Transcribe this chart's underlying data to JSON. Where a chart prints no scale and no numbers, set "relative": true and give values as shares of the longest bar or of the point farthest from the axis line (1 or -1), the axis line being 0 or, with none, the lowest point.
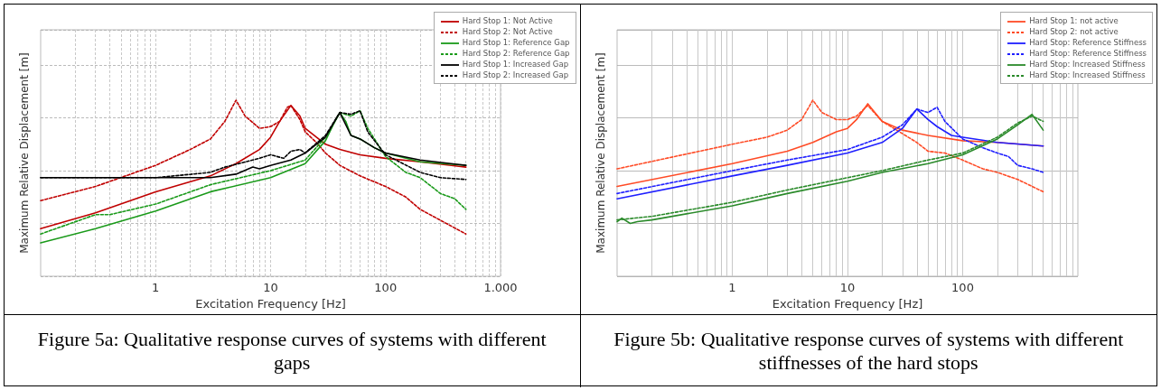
{
  "chart_data": [
    {
      "type": "line",
      "xlabel": "Excitation Frequency [Hz]",
      "ylabel": "Maximum Relative Displacement [m]",
      "relative": true,
      "log": "x",
      "grid": true,
      "legend": "top right",
      "marker": "none",
      "xlim": [
        0.1,
        1000
      ],
      "xticks": [
        {
          "value": 0.2,
          "label": null
        },
        {
          "value": 0.3,
          "label": null
        },
        {
          "value": 0.4,
          "label": null
        },
        {
          "value": 0.5,
          "label": null
        },
        {
          "value": 0.6,
          "label": null
        },
        {
          "value": 0.7,
          "label": null
        },
        {
          "value": 0.8,
          "label": null
        },
        {
          "value": 0.9,
          "label": null
        },
        1,
        {
          "value": 2,
          "label": null
        },
        {
          "value": 3,
          "label": null
        },
        {
          "value": 4,
          "label": null
        },
        {
          "value": 5,
          "label": null
        },
        {
          "value": 6,
          "label": null
        },
        {
          "value": 7,
          "label": null
        },
        {
          "value": 8,
          "label": null
        },
        {
          "value": 9,
          "label": null
        },
        10,
        {
          "value": 20,
          "label": null
        },
        {
          "value": 30,
          "label": null
        },
        {
          "value": 40,
          "label": null
        },
        {
          "value": 50,
          "label": null
        },
        {
          "value": 60,
          "label": null
        },
        {
          "value": 70,
          "label": null
        },
        {
          "value": 80,
          "label": null
        },
        {
          "value": 90,
          "label": null
        },
        100,
        {
          "value": 200,
          "label": null
        },
        {
          "value": 300,
          "label": null
        },
        {
          "value": 400,
          "label": null
        },
        {
          "value": 500,
          "label": null
        },
        {
          "value": 600,
          "label": null
        },
        {
          "value": 700,
          "label": null
        },
        {
          "value": 800,
          "label": null
        },
        {
          "value": 900,
          "label": null
        },
        {
          "value": 1000,
          "label": "1.000"
        }
      ],
      "annotations": [
        "Figure 5a: Qualitative response curves of systems with different gaps"
      ],
      "series": [
        {
          "name": "Hard Stop 1: Not Active",
          "color": "#c00000",
          "line_style": "solid",
          "x": [
            0.1,
            0.3,
            1,
            3,
            5,
            8,
            10,
            12,
            15,
            18,
            20,
            25,
            30,
            40,
            60,
            100,
            200,
            500
          ],
          "values": [
            0.27,
            0.36,
            0.48,
            0.57,
            0.64,
            0.72,
            0.79,
            0.88,
            0.97,
            0.91,
            0.84,
            0.79,
            0.75,
            0.72,
            0.69,
            0.67,
            0.65,
            0.62
          ]
        },
        {
          "name": "Hard Stop 2: Not Active",
          "color": "#c00000",
          "line_style": "dashed",
          "x": [
            0.1,
            0.3,
            1,
            2,
            3,
            4,
            5,
            6,
            8,
            10,
            12,
            14,
            15,
            18,
            20,
            25,
            30,
            40,
            60,
            100,
            150,
            200,
            500
          ],
          "values": [
            0.43,
            0.51,
            0.63,
            0.72,
            0.78,
            0.88,
            1.0,
            0.91,
            0.84,
            0.85,
            0.88,
            0.96,
            0.97,
            0.89,
            0.82,
            0.76,
            0.7,
            0.63,
            0.57,
            0.51,
            0.45,
            0.38,
            0.24
          ]
        },
        {
          "name": "Hard Stop 1: Reference Gap",
          "color": "#1a9a1a",
          "line_style": "solid",
          "x": [
            0.1,
            0.3,
            1,
            3,
            10,
            20,
            30,
            35,
            40,
            45,
            50,
            60,
            80,
            100,
            200,
            500
          ],
          "values": [
            0.19,
            0.27,
            0.37,
            0.48,
            0.56,
            0.64,
            0.77,
            0.86,
            0.93,
            0.88,
            0.8,
            0.78,
            0.73,
            0.7,
            0.65,
            0.63
          ]
        },
        {
          "name": "Hard Stop 2: Reference Gap",
          "color": "#1a9a1a",
          "line_style": "dashed",
          "x": [
            0.1,
            0.3,
            0.4,
            1,
            3,
            10,
            20,
            30,
            40,
            50,
            60,
            70,
            100,
            150,
            200,
            300,
            400,
            500
          ],
          "values": [
            0.24,
            0.35,
            0.35,
            0.41,
            0.52,
            0.6,
            0.66,
            0.79,
            0.93,
            0.91,
            0.94,
            0.84,
            0.68,
            0.59,
            0.56,
            0.47,
            0.44,
            0.38
          ]
        },
        {
          "name": "Hard Stop 1: Increased Gap",
          "color": "#000000",
          "line_style": "solid",
          "x": [
            0.1,
            1,
            3,
            5,
            7,
            8,
            10,
            15,
            20,
            30,
            40,
            50,
            60,
            80,
            100,
            200,
            500
          ],
          "values": [
            0.56,
            0.56,
            0.56,
            0.58,
            0.62,
            0.61,
            0.63,
            0.66,
            0.7,
            0.79,
            0.93,
            0.8,
            0.78,
            0.73,
            0.7,
            0.66,
            0.63
          ]
        },
        {
          "name": "Hard Stop 2: Increased Gap",
          "color": "#000000",
          "line_style": "dashed",
          "x": [
            0.1,
            1,
            3,
            4,
            8,
            10,
            13,
            15,
            18,
            20,
            30,
            40,
            50,
            60,
            70,
            100,
            200,
            300,
            500
          ],
          "values": [
            0.56,
            0.56,
            0.59,
            0.62,
            0.67,
            0.69,
            0.67,
            0.71,
            0.72,
            0.7,
            0.8,
            0.93,
            0.92,
            0.94,
            0.82,
            0.69,
            0.59,
            0.56,
            0.55
          ]
        }
      ]
    },
    {
      "type": "line",
      "xlabel": "Excitation Frequency [Hz]",
      "ylabel": "Maximum Relative Displacement [m]",
      "relative": true,
      "log": "x",
      "grid": true,
      "legend": "top right",
      "marker": "none",
      "xlim": [
        0.1,
        1000
      ],
      "xticks": [
        {
          "value": 0.2,
          "label": null
        },
        {
          "value": 0.3,
          "label": null
        },
        {
          "value": 0.4,
          "label": null
        },
        {
          "value": 0.5,
          "label": null
        },
        {
          "value": 0.6,
          "label": null
        },
        {
          "value": 0.7,
          "label": null
        },
        {
          "value": 0.8,
          "label": null
        },
        {
          "value": 0.9,
          "label": null
        },
        1,
        {
          "value": 2,
          "label": null
        },
        {
          "value": 3,
          "label": null
        },
        {
          "value": 4,
          "label": null
        },
        {
          "value": 5,
          "label": null
        },
        {
          "value": 6,
          "label": null
        },
        {
          "value": 7,
          "label": null
        },
        {
          "value": 8,
          "label": null
        },
        {
          "value": 9,
          "label": null
        },
        10,
        {
          "value": 20,
          "label": null
        },
        {
          "value": 30,
          "label": null
        },
        {
          "value": 40,
          "label": null
        },
        {
          "value": 50,
          "label": null
        },
        {
          "value": 60,
          "label": null
        },
        {
          "value": 70,
          "label": null
        },
        {
          "value": 80,
          "label": null
        },
        {
          "value": 90,
          "label": null
        },
        100,
        {
          "value": 200,
          "label": null
        },
        {
          "value": 300,
          "label": null
        },
        {
          "value": 400,
          "label": null
        },
        {
          "value": 500,
          "label": null
        },
        {
          "value": 600,
          "label": null
        },
        {
          "value": 700,
          "label": null
        },
        {
          "value": 800,
          "label": null
        },
        {
          "value": 900,
          "label": null
        }
      ],
      "annotations": [
        "Figure 5b: Qualitative response curves of systems with different stiffnesses of the hard stops"
      ],
      "series": [
        {
          "name": "Hard Stop 1: not active",
          "color": "#ff4b26",
          "line_style": "solid",
          "x": [
            0.1,
            1,
            3,
            5,
            8,
            10,
            12,
            15,
            20,
            30,
            50,
            100,
            200,
            500
          ],
          "values": [
            0.51,
            0.64,
            0.71,
            0.76,
            0.82,
            0.84,
            0.89,
            0.98,
            0.88,
            0.83,
            0.8,
            0.77,
            0.76,
            0.74
          ]
        },
        {
          "name": "Hard Stop 2: not active",
          "color": "#ff4b26",
          "line_style": "dashed",
          "x": [
            0.1,
            1,
            2,
            3,
            4,
            5,
            6,
            8,
            10,
            12,
            15,
            20,
            30,
            40,
            50,
            70,
            100,
            150,
            200,
            300,
            500
          ],
          "values": [
            0.61,
            0.75,
            0.79,
            0.83,
            0.89,
            1.0,
            0.93,
            0.89,
            0.89,
            0.91,
            0.97,
            0.88,
            0.81,
            0.76,
            0.71,
            0.7,
            0.66,
            0.61,
            0.59,
            0.55,
            0.48
          ]
        },
        {
          "name": "Hard Stop: Reference Stiffness",
          "color": "#1f1fff",
          "line_style": "solid",
          "x": [
            0.1,
            1,
            3,
            10,
            20,
            30,
            40,
            50,
            60,
            80,
            100,
            200,
            500
          ],
          "values": [
            0.44,
            0.57,
            0.63,
            0.7,
            0.76,
            0.84,
            0.95,
            0.89,
            0.85,
            0.8,
            0.79,
            0.76,
            0.74
          ]
        },
        {
          "name": "Hard Stop: Reference Stiffness",
          "color": "#1f1fff",
          "line_style": "dashed",
          "x": [
            0.1,
            1,
            3,
            10,
            20,
            30,
            40,
            50,
            60,
            70,
            100,
            150,
            200,
            250,
            300,
            400,
            500
          ],
          "values": [
            0.47,
            0.6,
            0.66,
            0.72,
            0.79,
            0.86,
            0.95,
            0.93,
            0.96,
            0.88,
            0.78,
            0.73,
            0.7,
            0.68,
            0.63,
            0.61,
            0.59
          ]
        },
        {
          "name": "Hard Stop: Increased Stiffness",
          "color": "#2a8a2a",
          "line_style": "solid",
          "x": [
            0.1,
            0.11,
            0.13,
            0.15,
            0.2,
            1,
            3,
            10,
            20,
            50,
            100,
            200,
            300,
            400,
            500
          ],
          "values": [
            0.31,
            0.33,
            0.3,
            0.31,
            0.32,
            0.4,
            0.47,
            0.54,
            0.59,
            0.64,
            0.69,
            0.78,
            0.86,
            0.92,
            0.83
          ]
        },
        {
          "name": "Hard Stop: Increased Stiffness",
          "color": "#2a8a2a",
          "line_style": "dashed",
          "x": [
            0.1,
            0.2,
            1,
            3,
            10,
            20,
            50,
            100,
            200,
            300,
            400,
            500
          ],
          "values": [
            0.32,
            0.34,
            0.42,
            0.49,
            0.56,
            0.6,
            0.66,
            0.7,
            0.79,
            0.87,
            0.91,
            0.88
          ]
        }
      ]
    }
  ]
}
